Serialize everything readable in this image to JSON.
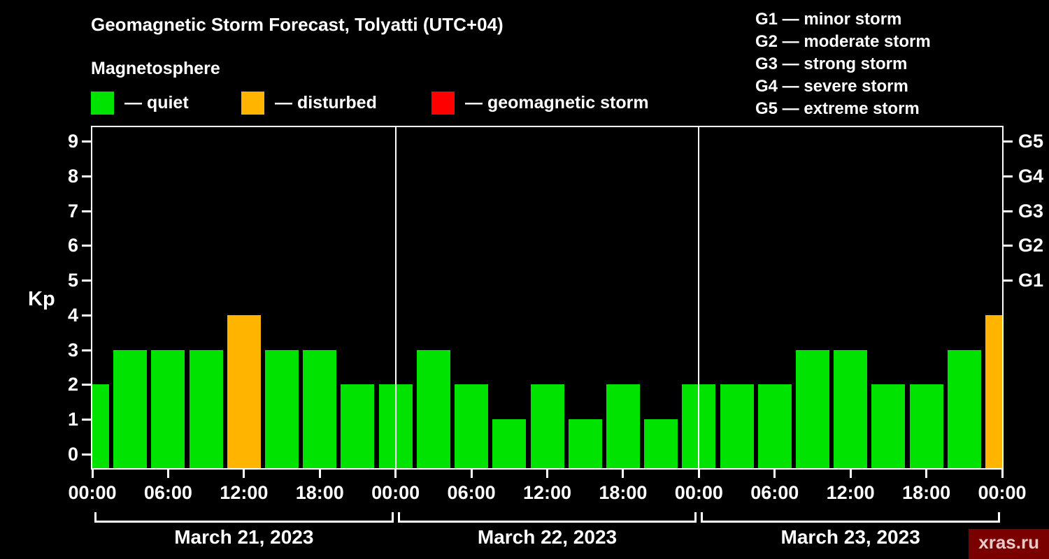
{
  "page": {
    "title": "Geomagnetic Storm Forecast, Tolyatti (UTC+04)",
    "subtitle": "Magnetosphere",
    "watermark": "xras.ru"
  },
  "colors": {
    "background": "#000000",
    "foreground": "#ffffff",
    "quiet": "#00e300",
    "disturbed": "#ffb400",
    "storm": "#ff0000",
    "watermark_bg": "#7a0000",
    "watermark_fg": "#e9c9c9"
  },
  "legend": [
    {
      "name": "quiet",
      "label": "— quiet",
      "color": "#00e300"
    },
    {
      "name": "disturbed",
      "label": "— disturbed",
      "color": "#ffb400"
    },
    {
      "name": "storm",
      "label": "— geomagnetic storm",
      "color": "#ff0000"
    }
  ],
  "g_legend": [
    "G1 — minor storm",
    "G2 — moderate storm",
    "G3 — strong storm",
    "G4 — severe storm",
    "G5 — extreme storm"
  ],
  "chart_data": {
    "type": "bar",
    "title": "Geomagnetic Storm Forecast, Tolyatti (UTC+04)",
    "subtitle": "Magnetosphere",
    "ylabel": "Kp",
    "ylim": [
      0,
      9.4
    ],
    "y_ticks": [
      0,
      1,
      2,
      3,
      4,
      5,
      6,
      7,
      8,
      9
    ],
    "right_axis": [
      {
        "label": "G5",
        "kp": 9
      },
      {
        "label": "G4",
        "kp": 8
      },
      {
        "label": "G3",
        "kp": 7
      },
      {
        "label": "G2",
        "kp": 6
      },
      {
        "label": "G1",
        "kp": 5
      }
    ],
    "x_tick_labels": [
      "00:00",
      "06:00",
      "12:00",
      "18:00",
      "00:00",
      "06:00",
      "12:00",
      "18:00",
      "00:00",
      "06:00",
      "12:00",
      "18:00",
      "00:00"
    ],
    "step_hours": 3,
    "thresholds": {
      "disturbed_min": 4,
      "storm_min": 5
    },
    "series": [
      {
        "name": "Kp forecast",
        "values": [
          2,
          3,
          3,
          3,
          4,
          3,
          3,
          2,
          2,
          3,
          2,
          1,
          2,
          1,
          2,
          1,
          2,
          2,
          2,
          3,
          3,
          2,
          2,
          3,
          4
        ]
      }
    ],
    "days": [
      {
        "label": "March 21, 2023"
      },
      {
        "label": "March 22, 2023"
      },
      {
        "label": "March 23, 2023"
      }
    ],
    "legend_position": "top-left",
    "grid": false
  }
}
